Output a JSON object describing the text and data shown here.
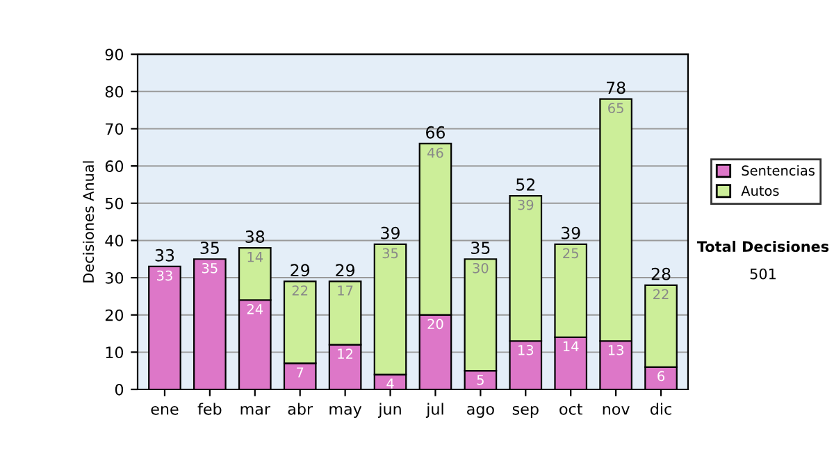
{
  "chart_data": {
    "type": "bar",
    "stacked": true,
    "ylabel": "Decisiones Anual",
    "categories": [
      "ene",
      "feb",
      "mar",
      "abr",
      "may",
      "jun",
      "jul",
      "ago",
      "sep",
      "oct",
      "nov",
      "dic"
    ],
    "series": [
      {
        "name": "Sentencias",
        "color": "#dd77c8",
        "values": [
          33,
          35,
          24,
          7,
          12,
          4,
          20,
          5,
          13,
          14,
          13,
          6
        ],
        "value_labels": [
          "33",
          "35",
          "24",
          "7",
          "12",
          "4",
          "20",
          "5",
          "13",
          "14",
          "13",
          "6"
        ]
      },
      {
        "name": "Autos",
        "color": "#ccee99",
        "values": [
          0,
          0,
          14,
          22,
          17,
          35,
          46,
          30,
          39,
          25,
          65,
          22
        ],
        "value_labels": [
          null,
          null,
          "14",
          "22",
          "17",
          "35",
          "46",
          "30",
          "39",
          "25",
          "65",
          "22"
        ]
      }
    ],
    "totals": [
      "33",
      "35",
      "38",
      "29",
      "29",
      "39",
      "66",
      "35",
      "52",
      "39",
      "78",
      "28"
    ],
    "ylim": [
      0,
      90
    ],
    "yticks": [
      0,
      10,
      20,
      30,
      40,
      50,
      60,
      70,
      80,
      90
    ],
    "grid": "y",
    "legend": "right",
    "annotations": [
      "Total Decisiones",
      "501"
    ]
  }
}
